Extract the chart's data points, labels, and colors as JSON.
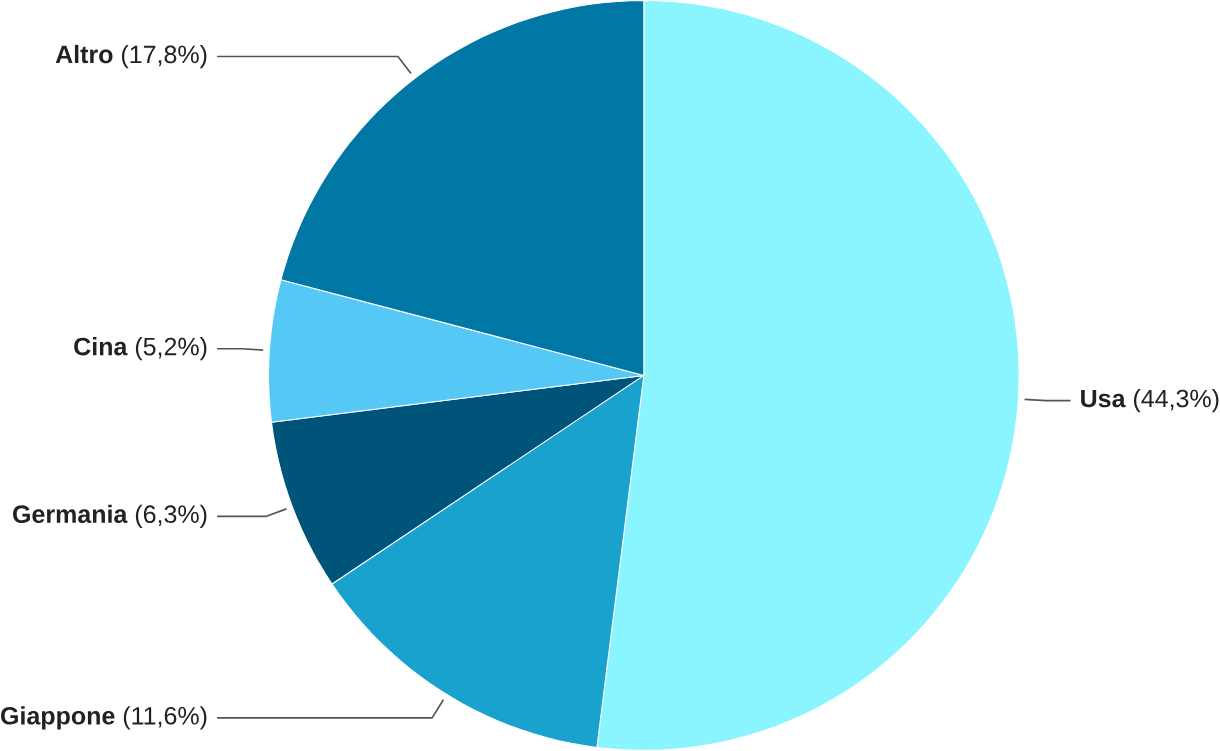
{
  "chart_data": {
    "type": "pie",
    "categories": [
      "Usa",
      "Giappone",
      "Germania",
      "Cina",
      "Altro"
    ],
    "values": [
      44.3,
      11.6,
      6.3,
      5.2,
      17.8
    ],
    "value_labels": [
      "(44,3%)",
      "(11,6%)",
      "(6,3%)",
      "(5,2%)",
      "(17,8%)"
    ],
    "colors": [
      "#8af4ff",
      "#1aa2cf",
      "#005479",
      "#56c8f6",
      "#0077a4"
    ]
  }
}
